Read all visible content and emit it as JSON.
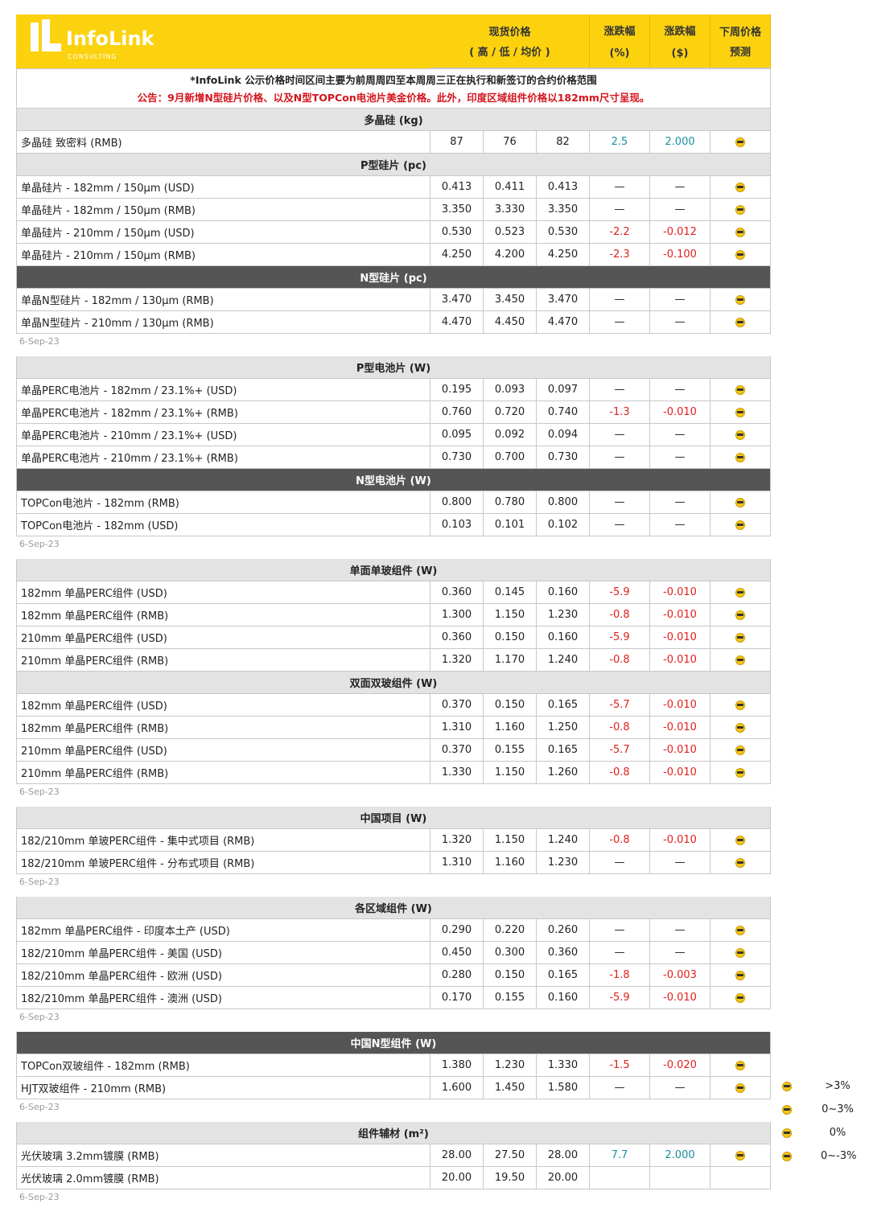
{
  "header": {
    "logo": "InfoLink",
    "logo_sub": "CONSULTING",
    "price": "现货价格",
    "price_sub": "( 高 / 低 / 均价 )",
    "change_pct": "涨跌幅",
    "change_pct_unit": "(%)",
    "change_usd": "涨跌幅",
    "change_usd_unit": "($)",
    "forecast": "下周价格",
    "forecast_sub": "预测"
  },
  "notice": [
    "*InfoLink 公示价格时间区间主要为前周周四至本周周三正在执行和新签订的合约价格范围",
    "公告：9月新增N型硅片价格、以及N型TOPCon电池片美金价格。此外，印度区域组件价格以182mm尺寸呈现。"
  ],
  "groups": [
    {
      "sections": [
        {
          "title": "多晶硅 (kg)",
          "dark": false,
          "rows": [
            [
              "多晶硅 致密料 (RMB)",
              "87",
              "76",
              "82",
              "2.5",
              "2.000"
            ]
          ]
        },
        {
          "title": "P型硅片 (pc)",
          "dark": false,
          "rows": [
            [
              "单晶硅片 - 182mm / 150μm (USD)",
              "0.413",
              "0.411",
              "0.413",
              "—",
              "—"
            ],
            [
              "单晶硅片 - 182mm / 150μm (RMB)",
              "3.350",
              "3.330",
              "3.350",
              "—",
              "—"
            ],
            [
              "单晶硅片 - 210mm / 150μm (USD)",
              "0.530",
              "0.523",
              "0.530",
              "-2.2",
              "-0.012"
            ],
            [
              "单晶硅片 - 210mm / 150μm (RMB)",
              "4.250",
              "4.200",
              "4.250",
              "-2.3",
              "-0.100"
            ]
          ]
        },
        {
          "title": "N型硅片 (pc)",
          "dark": true,
          "rows": [
            [
              "单晶N型硅片 - 182mm / 130μm (RMB)",
              "3.470",
              "3.450",
              "3.470",
              "—",
              "—"
            ],
            [
              "单晶N型硅片 - 210mm / 130μm (RMB)",
              "4.470",
              "4.450",
              "4.470",
              "—",
              "—"
            ]
          ]
        }
      ],
      "date": "6-Sep-23"
    },
    {
      "sections": [
        {
          "title": "P型电池片 (W)",
          "dark": false,
          "rows": [
            [
              "单晶PERC电池片 - 182mm / 23.1%+ (USD)",
              "0.195",
              "0.093",
              "0.097",
              "—",
              "—"
            ],
            [
              "单晶PERC电池片 - 182mm / 23.1%+ (RMB)",
              "0.760",
              "0.720",
              "0.740",
              "-1.3",
              "-0.010"
            ],
            [
              "单晶PERC电池片 - 210mm / 23.1%+ (USD)",
              "0.095",
              "0.092",
              "0.094",
              "—",
              "—"
            ],
            [
              "单晶PERC电池片 - 210mm / 23.1%+ (RMB)",
              "0.730",
              "0.700",
              "0.730",
              "—",
              "—"
            ]
          ]
        },
        {
          "title": "N型电池片 (W)",
          "dark": true,
          "rows": [
            [
              "TOPCon电池片 - 182mm (RMB)",
              "0.800",
              "0.780",
              "0.800",
              "—",
              "—"
            ],
            [
              "TOPCon电池片 - 182mm (USD)",
              "0.103",
              "0.101",
              "0.102",
              "—",
              "—"
            ]
          ]
        }
      ],
      "date": "6-Sep-23"
    },
    {
      "sections": [
        {
          "title": "单面单玻组件 (W)",
          "dark": false,
          "rows": [
            [
              "182mm 单晶PERC组件 (USD)",
              "0.360",
              "0.145",
              "0.160",
              "-5.9",
              "-0.010"
            ],
            [
              "182mm 单晶PERC组件 (RMB)",
              "1.300",
              "1.150",
              "1.230",
              "-0.8",
              "-0.010"
            ],
            [
              "210mm 单晶PERC组件 (USD)",
              "0.360",
              "0.150",
              "0.160",
              "-5.9",
              "-0.010"
            ],
            [
              "210mm 单晶PERC组件 (RMB)",
              "1.320",
              "1.170",
              "1.240",
              "-0.8",
              "-0.010"
            ]
          ]
        },
        {
          "title": "双面双玻组件 (W)",
          "dark": false,
          "rows": [
            [
              "182mm 单晶PERC组件 (USD)",
              "0.370",
              "0.150",
              "0.165",
              "-5.7",
              "-0.010"
            ],
            [
              "182mm 单晶PERC组件 (RMB)",
              "1.310",
              "1.160",
              "1.250",
              "-0.8",
              "-0.010"
            ],
            [
              "210mm 单晶PERC组件 (USD)",
              "0.370",
              "0.155",
              "0.165",
              "-5.7",
              "-0.010"
            ],
            [
              "210mm 单晶PERC组件 (RMB)",
              "1.330",
              "1.150",
              "1.260",
              "-0.8",
              "-0.010"
            ]
          ]
        }
      ],
      "date": "6-Sep-23"
    },
    {
      "sections": [
        {
          "title": "中国项目 (W)",
          "dark": false,
          "rows": [
            [
              "182/210mm 单玻PERC组件 - 集中式项目 (RMB)",
              "1.320",
              "1.150",
              "1.240",
              "-0.8",
              "-0.010"
            ],
            [
              "182/210mm 单玻PERC组件 - 分布式项目 (RMB)",
              "1.310",
              "1.160",
              "1.230",
              "—",
              "—"
            ]
          ]
        }
      ],
      "date": "6-Sep-23"
    },
    {
      "sections": [
        {
          "title": "各区域组件 (W)",
          "dark": false,
          "rows": [
            [
              "182mm 单晶PERC组件 - 印度本土产 (USD)",
              "0.290",
              "0.220",
              "0.260",
              "—",
              "—"
            ],
            [
              "182/210mm 单晶PERC组件 - 美国 (USD)",
              "0.450",
              "0.300",
              "0.360",
              "—",
              "—"
            ],
            [
              "182/210mm 单晶PERC组件 - 欧洲 (USD)",
              "0.280",
              "0.150",
              "0.165",
              "-1.8",
              "-0.003"
            ],
            [
              "182/210mm 单晶PERC组件 - 澳洲 (USD)",
              "0.170",
              "0.155",
              "0.160",
              "-5.9",
              "-0.010"
            ]
          ]
        }
      ],
      "date": "6-Sep-23"
    },
    {
      "sections": [
        {
          "title": "中国N型组件 (W)",
          "dark": true,
          "rows": [
            [
              "TOPCon双玻组件 - 182mm (RMB)",
              "1.380",
              "1.230",
              "1.330",
              "-1.5",
              "-0.020"
            ],
            [
              "HJT双玻组件 - 210mm (RMB)",
              "1.600",
              "1.450",
              "1.580",
              "—",
              "—"
            ]
          ]
        }
      ],
      "date": "6-Sep-23"
    },
    {
      "sections": [
        {
          "title": "组件辅材 (m²)",
          "dark": false,
          "rows": [
            [
              "光伏玻璃 3.2mm镀膜 (RMB)",
              "28.00",
              "27.50",
              "28.00",
              "7.7",
              "2.000"
            ],
            [
              "光伏玻璃 2.0mm镀膜 (RMB)",
              "20.00",
              "19.50",
              "20.00"
            ]
          ]
        }
      ],
      "date": "6-Sep-23"
    }
  ],
  "legend": [
    ">3%",
    "0~3%",
    "0%",
    "0~-3%"
  ]
}
